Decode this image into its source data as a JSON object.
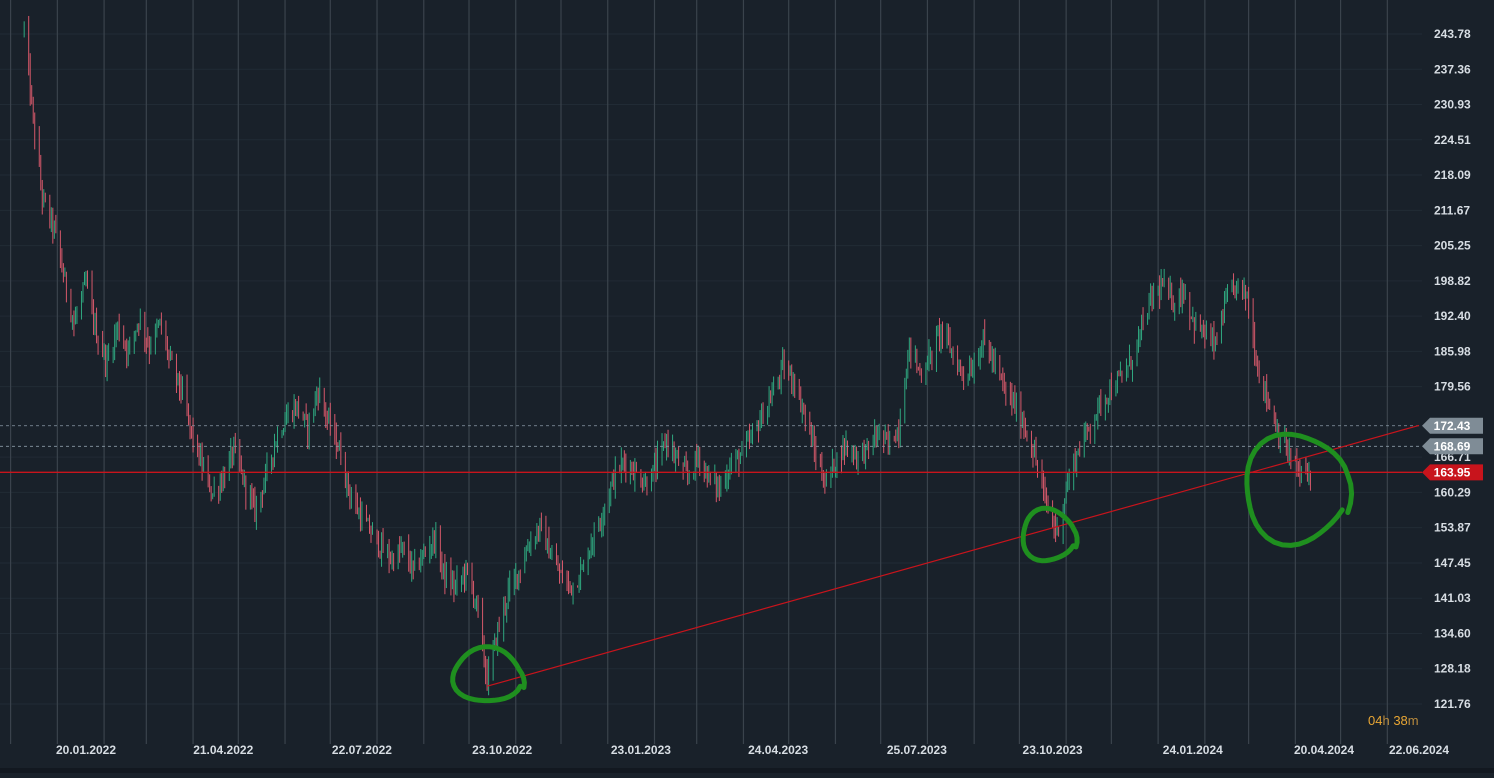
{
  "chart_data": {
    "type": "candlestick",
    "y_ticks": [
      "243.78",
      "237.36",
      "230.93",
      "224.51",
      "218.09",
      "211.67",
      "205.25",
      "198.82",
      "192.40",
      "185.98",
      "179.56",
      "166.71",
      "160.29",
      "153.87",
      "147.45",
      "141.03",
      "134.60",
      "128.18",
      "121.76"
    ],
    "x_ticks": [
      "20.01.2022",
      "21.04.2022",
      "22.07.2022",
      "23.10.2022",
      "23.01.2023",
      "24.04.2023",
      "25.07.2023",
      "23.10.2023",
      "24.01.2024",
      "20.04.2024",
      "22.06.2024"
    ],
    "ylim": [
      121.76,
      243.78
    ],
    "price_tags": [
      {
        "value": 172.43,
        "label": "172.43",
        "color": "#7f8c96"
      },
      {
        "value": 168.69,
        "label": "168.69",
        "color": "#7f8c96"
      },
      {
        "value": 163.95,
        "label": "163.95",
        "color": "#c8141c"
      }
    ],
    "trendline": {
      "from": {
        "date": "2022-10-13",
        "value": 125.0
      },
      "to": {
        "date": "2024-06-22",
        "value": 172.5
      },
      "color": "#c8141c"
    },
    "annotations": [
      {
        "type": "circle",
        "date": "2022-10-13",
        "value": 127.0,
        "color": "#1f8f1f"
      },
      {
        "type": "circle",
        "date": "2023-10-20",
        "value": 152.5,
        "color": "#1f8f1f"
      },
      {
        "type": "circle",
        "date": "2024-04-01",
        "value": 161.0,
        "color": "#1f8f1f"
      }
    ],
    "candle_colors": {
      "up": "#2fa77f",
      "down": "#d5586a"
    },
    "path": [
      [
        "2021-12-10",
        244.8
      ],
      [
        "2021-12-16",
        228.0
      ],
      [
        "2021-12-22",
        214.0
      ],
      [
        "2021-12-30",
        208.0
      ],
      [
        "2022-01-05",
        200.0
      ],
      [
        "2022-01-12",
        191.0
      ],
      [
        "2022-01-20",
        198.5
      ],
      [
        "2022-01-27",
        189.0
      ],
      [
        "2022-02-03",
        184.0
      ],
      [
        "2022-02-10",
        190.5
      ],
      [
        "2022-02-17",
        186.0
      ],
      [
        "2022-02-24",
        192.0
      ],
      [
        "2022-03-03",
        187.0
      ],
      [
        "2022-03-10",
        191.0
      ],
      [
        "2022-03-17",
        184.0
      ],
      [
        "2022-03-24",
        179.0
      ],
      [
        "2022-03-31",
        171.0
      ],
      [
        "2022-04-07",
        165.0
      ],
      [
        "2022-04-14",
        160.0
      ],
      [
        "2022-04-21",
        163.0
      ],
      [
        "2022-04-28",
        168.0
      ],
      [
        "2022-05-05",
        162.0
      ],
      [
        "2022-05-12",
        157.0
      ],
      [
        "2022-05-19",
        163.0
      ],
      [
        "2022-05-26",
        170.0
      ],
      [
        "2022-06-02",
        174.0
      ],
      [
        "2022-06-09",
        176.0
      ],
      [
        "2022-06-16",
        172.0
      ],
      [
        "2022-06-23",
        179.0
      ],
      [
        "2022-06-30",
        173.0
      ],
      [
        "2022-07-07",
        168.0
      ],
      [
        "2022-07-14",
        160.0
      ],
      [
        "2022-07-21",
        156.0
      ],
      [
        "2022-07-28",
        153.0
      ],
      [
        "2022-08-04",
        150.0
      ],
      [
        "2022-08-11",
        148.0
      ],
      [
        "2022-08-18",
        150.0
      ],
      [
        "2022-08-25",
        146.0
      ],
      [
        "2022-09-01",
        149.0
      ],
      [
        "2022-09-08",
        152.0
      ],
      [
        "2022-09-15",
        145.0
      ],
      [
        "2022-09-22",
        143.0
      ],
      [
        "2022-09-29",
        146.0
      ],
      [
        "2022-10-06",
        140.0
      ],
      [
        "2022-10-13",
        126.0
      ],
      [
        "2022-10-20",
        135.0
      ],
      [
        "2022-10-27",
        142.0
      ],
      [
        "2022-11-03",
        146.0
      ],
      [
        "2022-11-10",
        151.0
      ],
      [
        "2022-11-17",
        154.0
      ],
      [
        "2022-11-24",
        149.0
      ],
      [
        "2022-12-01",
        145.0
      ],
      [
        "2022-12-08",
        143.0
      ],
      [
        "2022-12-15",
        146.0
      ],
      [
        "2022-12-22",
        152.0
      ],
      [
        "2022-12-29",
        157.0
      ],
      [
        "2023-01-05",
        163.0
      ],
      [
        "2023-01-12",
        166.0
      ],
      [
        "2023-01-19",
        164.0
      ],
      [
        "2023-01-26",
        162.0
      ],
      [
        "2023-02-02",
        165.0
      ],
      [
        "2023-02-09",
        170.0
      ],
      [
        "2023-02-16",
        166.0
      ],
      [
        "2023-02-23",
        163.0
      ],
      [
        "2023-03-02",
        167.0
      ],
      [
        "2023-03-09",
        163.0
      ],
      [
        "2023-03-16",
        161.0
      ],
      [
        "2023-03-23",
        165.0
      ],
      [
        "2023-03-30",
        167.0
      ],
      [
        "2023-04-06",
        170.0
      ],
      [
        "2023-04-13",
        174.0
      ],
      [
        "2023-04-20",
        178.0
      ],
      [
        "2023-04-27",
        183.0
      ],
      [
        "2023-05-04",
        181.0
      ],
      [
        "2023-05-11",
        175.0
      ],
      [
        "2023-05-18",
        168.0
      ],
      [
        "2023-05-25",
        162.0
      ],
      [
        "2023-06-01",
        166.0
      ],
      [
        "2023-06-08",
        169.0
      ],
      [
        "2023-06-15",
        167.0
      ],
      [
        "2023-06-22",
        168.0
      ],
      [
        "2023-06-29",
        171.0
      ],
      [
        "2023-07-06",
        169.0
      ],
      [
        "2023-07-13",
        172.0
      ],
      [
        "2023-07-20",
        187.0
      ],
      [
        "2023-07-27",
        182.0
      ],
      [
        "2023-08-03",
        185.0
      ],
      [
        "2023-08-10",
        190.0
      ],
      [
        "2023-08-17",
        186.0
      ],
      [
        "2023-08-24",
        182.0
      ],
      [
        "2023-08-31",
        183.0
      ],
      [
        "2023-09-07",
        188.0
      ],
      [
        "2023-09-14",
        184.0
      ],
      [
        "2023-09-21",
        179.0
      ],
      [
        "2023-09-28",
        176.0
      ],
      [
        "2023-10-05",
        172.0
      ],
      [
        "2023-10-12",
        166.0
      ],
      [
        "2023-10-19",
        158.0
      ],
      [
        "2023-10-26",
        153.0
      ],
      [
        "2023-11-02",
        162.0
      ],
      [
        "2023-11-09",
        168.0
      ],
      [
        "2023-11-16",
        172.0
      ],
      [
        "2023-11-23",
        176.0
      ],
      [
        "2023-11-30",
        179.0
      ],
      [
        "2023-12-07",
        181.0
      ],
      [
        "2023-12-14",
        184.0
      ],
      [
        "2023-12-21",
        190.0
      ],
      [
        "2023-12-28",
        196.0
      ],
      [
        "2024-01-04",
        198.0
      ],
      [
        "2024-01-11",
        195.0
      ],
      [
        "2024-01-18",
        197.0
      ],
      [
        "2024-01-25",
        191.0
      ],
      [
        "2024-02-01",
        189.0
      ],
      [
        "2024-02-08",
        187.0
      ],
      [
        "2024-02-15",
        195.0
      ],
      [
        "2024-02-22",
        198.0
      ],
      [
        "2024-02-29",
        196.0
      ],
      [
        "2024-03-07",
        183.0
      ],
      [
        "2024-03-14",
        177.0
      ],
      [
        "2024-03-21",
        171.0
      ],
      [
        "2024-03-28",
        167.0
      ],
      [
        "2024-04-04",
        163.5
      ],
      [
        "2024-04-11",
        164.0
      ]
    ]
  },
  "countdown": {
    "hours": "04",
    "h_unit": "h",
    "minutes": "38",
    "m_unit": "m"
  }
}
